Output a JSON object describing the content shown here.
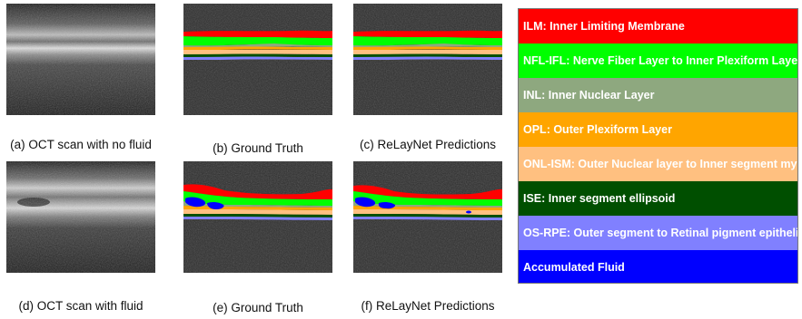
{
  "colors": {
    "ilm": "#ff0000",
    "nfl_ifl": "#00ff00",
    "inl": "#8ea87f",
    "opl": "#ffa500",
    "onl_ism": "#ffc080",
    "ise": "#004f00",
    "os_rpe": "#8080ff",
    "fluid": "#0000ff"
  },
  "captions": {
    "a": "(a) OCT scan with no fluid",
    "b": "(b) Ground Truth",
    "c": "(c) ReLayNet Predictions",
    "d": "(d) OCT scan with fluid",
    "e": "(e) Ground Truth",
    "f": "(f) ReLayNet Predictions"
  },
  "legend": [
    {
      "label": "ILM: Inner Limiting Membrane",
      "color": "#ff0000"
    },
    {
      "label": "NFL-IFL: Nerve Fiber Layer to Inner Plexiform Layer",
      "color": "#00ff00"
    },
    {
      "label": "INL: Inner Nuclear Layer",
      "color": "#8ea87f"
    },
    {
      "label": "OPL: Outer Plexiform Layer",
      "color": "#ffa500"
    },
    {
      "label": "ONL-ISM: Outer Nuclear layer to Inner segment myeloid",
      "color": "#ffc080"
    },
    {
      "label": "ISE: Inner segment ellipsoid",
      "color": "#004f00"
    },
    {
      "label": "OS-RPE: Outer segment to Retinal pigment epithelium",
      "color": "#8080ff"
    },
    {
      "label": "Accumulated Fluid",
      "color": "#0000ff"
    }
  ]
}
